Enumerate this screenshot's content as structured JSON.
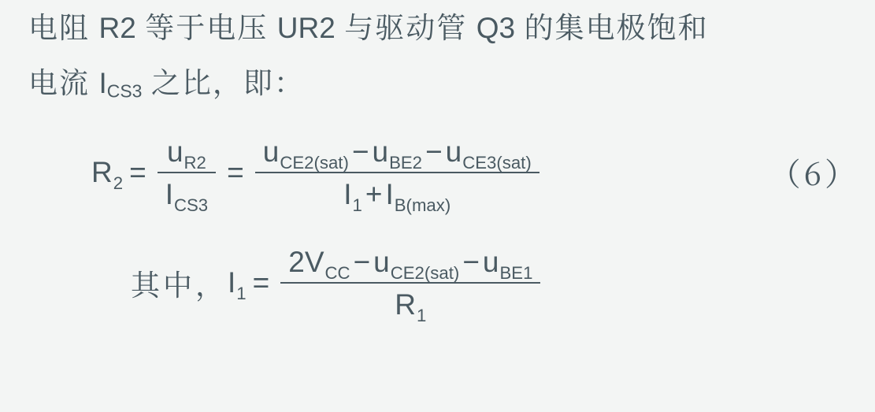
{
  "line1": {
    "t1": "电阻 ",
    "r2": "R2",
    "t2": " 等于电压 ",
    "ur2": "UR2",
    "t3": " 与驱动管 ",
    "q3": "Q3",
    "t4": " 的集电极饱和"
  },
  "line2": {
    "t1": "电流 ",
    "I": "I",
    "Isub": "CS3",
    "t2": " 之比，即："
  },
  "eq1": {
    "lhs": {
      "base": "R",
      "sub": "2"
    },
    "eq": "=",
    "frac1": {
      "num": {
        "base": "u",
        "sub": "R2"
      },
      "den": {
        "base": "I",
        "sub": "CS3"
      }
    },
    "frac2": {
      "num": {
        "a": {
          "base": "u",
          "sub": "CE2(sat)"
        },
        "m1": "−",
        "b": {
          "base": "u",
          "sub": "BE2"
        },
        "m2": "−",
        "c": {
          "base": "u",
          "sub": "CE3(sat)"
        }
      },
      "den": {
        "a": {
          "base": "I",
          "sub": "1"
        },
        "p": "+",
        "b": {
          "base": "I",
          "sub": "B(max)"
        }
      }
    },
    "label": "（6）"
  },
  "eq2": {
    "prefix": "其中，",
    "lhs": {
      "base": "I",
      "sub": "1"
    },
    "eq": "=",
    "frac": {
      "num": {
        "two": "2",
        "a": {
          "base": "V",
          "sub": "CC"
        },
        "m1": "−",
        "b": {
          "base": "u",
          "sub": "CE2(sat)"
        },
        "m2": "−",
        "c": {
          "base": "u",
          "sub": "BE1"
        }
      },
      "den": {
        "base": "R",
        "sub": "1"
      }
    }
  }
}
